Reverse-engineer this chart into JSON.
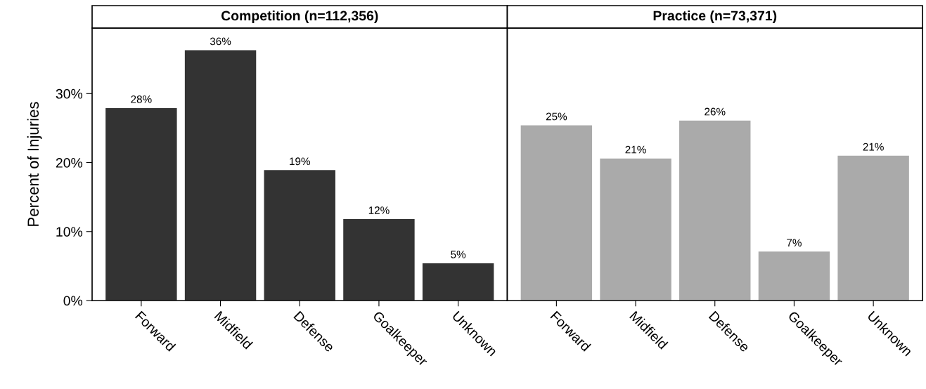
{
  "chart_data": [
    {
      "type": "bar",
      "title": "Competition (n=112,356)",
      "ylabel": "Percent of Injuries",
      "categories": [
        "Forward",
        "Midfield",
        "Defense",
        "Goalkeeper",
        "Unknown"
      ],
      "series": [
        {
          "color": "#333333",
          "values": [
            27.9,
            36.3,
            18.9,
            11.8,
            5.4
          ],
          "value_labels": [
            "28%",
            "36%",
            "19%",
            "12%",
            "5%"
          ]
        }
      ],
      "ylim": [
        0,
        39.5
      ],
      "yticks": [
        {
          "value": 0,
          "label": "0%"
        },
        {
          "value": 10,
          "label": "10%"
        },
        {
          "value": 20,
          "label": "20%"
        },
        {
          "value": 30,
          "label": "30%"
        }
      ],
      "grid": false,
      "legend": false
    },
    {
      "type": "bar",
      "title": "Practice (n=73,371)",
      "categories": [
        "Forward",
        "Midfield",
        "Defense",
        "Goalkeeper",
        "Unknown"
      ],
      "series": [
        {
          "color": "#aaaaaa",
          "values": [
            25.4,
            20.6,
            26.1,
            7.1,
            21.0
          ],
          "value_labels": [
            "25%",
            "21%",
            "26%",
            "7%",
            "21%"
          ]
        }
      ],
      "ylim": [
        0,
        39.5
      ],
      "tick_labels": "x",
      "grid": false,
      "legend": false
    }
  ]
}
